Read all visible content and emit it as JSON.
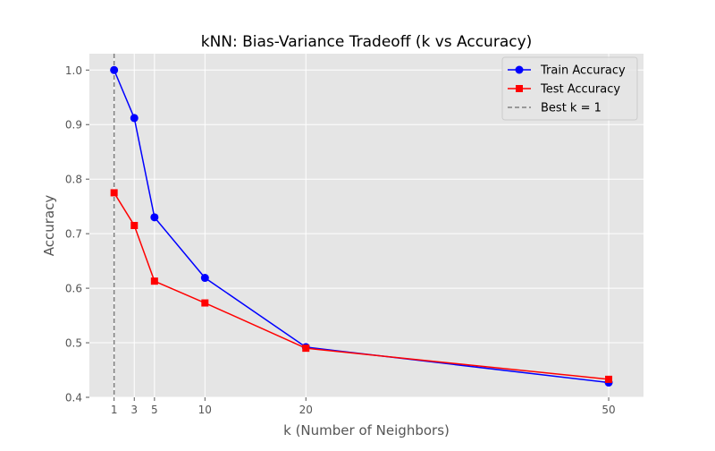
{
  "chart_data": {
    "type": "line",
    "title": "kNN: Bias-Variance Tradeoff (k vs Accuracy)",
    "xlabel": "k (Number of Neighbors)",
    "ylabel": "Accuracy",
    "x": [
      1,
      3,
      5,
      10,
      20,
      50
    ],
    "xticks": [
      "1",
      "3",
      "5",
      "10",
      "20",
      "50"
    ],
    "yticks": [
      "0.4",
      "0.5",
      "0.6",
      "0.7",
      "0.8",
      "0.9",
      "1.0"
    ],
    "xlim": [
      -1.45,
      53.45
    ],
    "ylim": [
      0.4,
      1.03
    ],
    "grid": true,
    "legend_position": "top-right",
    "series": [
      {
        "name": "Train Accuracy",
        "color": "#0000ff",
        "marker": "circle",
        "values": [
          1.0,
          0.912,
          0.73,
          0.619,
          0.492,
          0.427
        ]
      },
      {
        "name": "Test Accuracy",
        "color": "#ff0000",
        "marker": "square",
        "values": [
          0.775,
          0.715,
          0.613,
          0.573,
          0.49,
          0.433
        ]
      }
    ],
    "vline": {
      "label": "Best k = 1",
      "x": 1,
      "color": "#808080",
      "style": "dashed"
    }
  }
}
